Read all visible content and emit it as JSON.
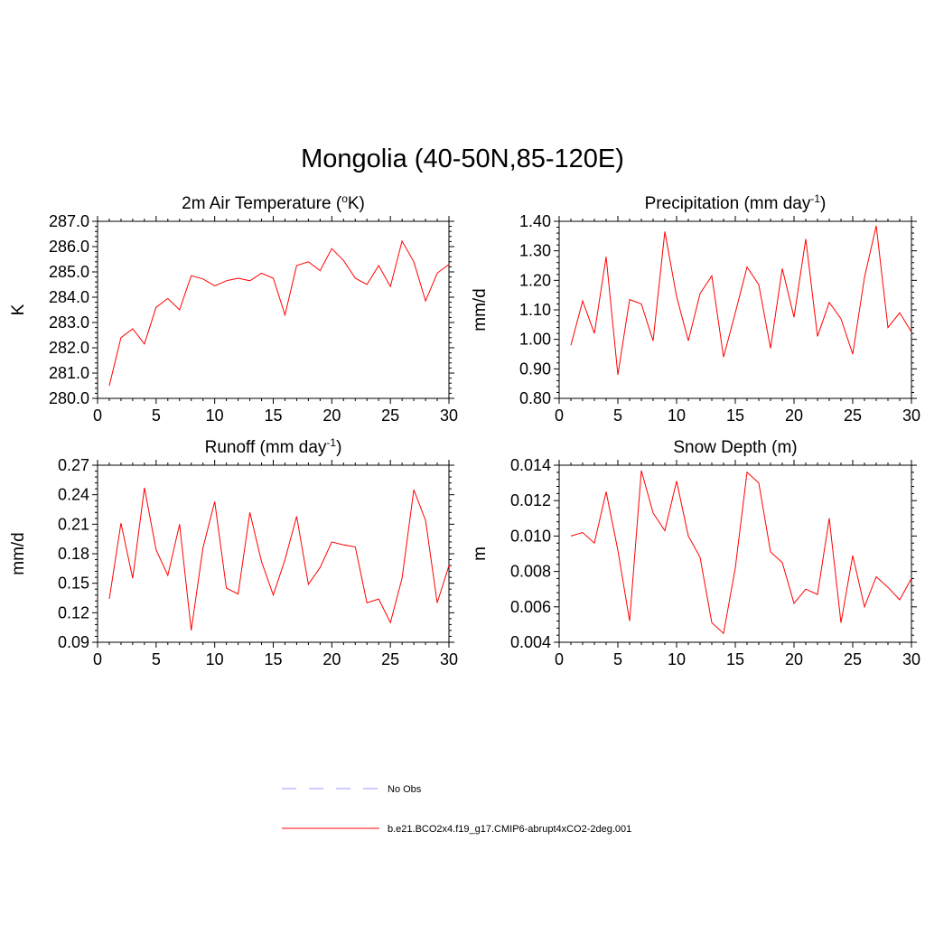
{
  "title": "Mongolia (40-50N,85-120E)",
  "legend": {
    "entries": [
      {
        "label": "No Obs",
        "color": "#9999ff",
        "style": "dashed"
      },
      {
        "label": "b.e21.BCO2x4.f19_g17.CMIP6-abrupt4xCO2-2deg.001",
        "color": "#ff0000",
        "style": "solid"
      }
    ]
  },
  "chart_data": [
    {
      "type": "line",
      "title": "2m Air Temperature (",
      "title_super": "o",
      "title_tail": "K)",
      "ylabel": "K",
      "xlim": [
        0,
        30
      ],
      "ylim": [
        280.0,
        287.0
      ],
      "xticks": [
        0,
        5,
        10,
        15,
        20,
        25,
        30
      ],
      "yticks": [
        "280.0",
        "281.0",
        "282.0",
        "283.0",
        "284.0",
        "285.0",
        "286.0",
        "287.0"
      ],
      "x": [
        1,
        2,
        3,
        4,
        5,
        6,
        7,
        8,
        9,
        10,
        11,
        12,
        13,
        14,
        15,
        16,
        17,
        18,
        19,
        20,
        21,
        22,
        23,
        24,
        25,
        26,
        27,
        28,
        29,
        30
      ],
      "values": [
        280.5,
        282.4,
        282.75,
        282.15,
        283.6,
        283.95,
        283.5,
        284.85,
        284.72,
        284.45,
        284.65,
        284.75,
        284.65,
        284.95,
        284.75,
        283.3,
        285.25,
        285.4,
        285.05,
        285.92,
        285.45,
        284.75,
        284.5,
        285.25,
        284.42,
        286.22,
        285.4,
        283.85,
        284.95,
        285.3
      ],
      "series_name": "b.e21.BCO2x4.f19_g17.CMIP6-abrupt4xCO2-2deg.001",
      "color": "#ff0000"
    },
    {
      "type": "line",
      "title": "Precipitation (mm day",
      "title_super": "-1",
      "title_tail": ")",
      "ylabel": "mm/d",
      "xlim": [
        0,
        30
      ],
      "ylim": [
        0.8,
        1.4
      ],
      "xticks": [
        0,
        5,
        10,
        15,
        20,
        25,
        30
      ],
      "yticks": [
        "0.80",
        "0.90",
        "1.00",
        "1.10",
        "1.20",
        "1.30",
        "1.40"
      ],
      "x": [
        1,
        2,
        3,
        4,
        5,
        6,
        7,
        8,
        9,
        10,
        11,
        12,
        13,
        14,
        15,
        16,
        17,
        18,
        19,
        20,
        21,
        22,
        23,
        24,
        25,
        26,
        27,
        28,
        29,
        30
      ],
      "values": [
        0.98,
        1.13,
        1.02,
        1.28,
        0.88,
        1.135,
        1.12,
        0.995,
        1.365,
        1.145,
        0.995,
        1.155,
        1.215,
        0.94,
        1.09,
        1.245,
        1.185,
        0.97,
        1.24,
        1.075,
        1.34,
        1.01,
        1.125,
        1.07,
        0.95,
        1.21,
        1.385,
        1.04,
        1.09,
        1.025
      ],
      "series_name": "b.e21.BCO2x4.f19_g17.CMIP6-abrupt4xCO2-2deg.001",
      "color": "#ff0000"
    },
    {
      "type": "line",
      "title": "Runoff (mm day",
      "title_super": "-1",
      "title_tail": ")",
      "ylabel": "mm/d",
      "xlim": [
        0,
        30
      ],
      "ylim": [
        0.09,
        0.27
      ],
      "xticks": [
        0,
        5,
        10,
        15,
        20,
        25,
        30
      ],
      "yticks": [
        "0.09",
        "0.12",
        "0.15",
        "0.18",
        "0.21",
        "0.24",
        "0.27"
      ],
      "x": [
        1,
        2,
        3,
        4,
        5,
        6,
        7,
        8,
        9,
        10,
        11,
        12,
        13,
        14,
        15,
        16,
        17,
        18,
        19,
        20,
        21,
        22,
        23,
        24,
        25,
        26,
        27,
        28,
        29,
        30
      ],
      "values": [
        0.134,
        0.211,
        0.155,
        0.247,
        0.184,
        0.158,
        0.21,
        0.102,
        0.186,
        0.233,
        0.145,
        0.139,
        0.222,
        0.172,
        0.138,
        0.174,
        0.218,
        0.149,
        0.166,
        0.192,
        0.189,
        0.187,
        0.13,
        0.134,
        0.11,
        0.155,
        0.245,
        0.214,
        0.13,
        0.168
      ],
      "series_name": "b.e21.BCO2x4.f19_g17.CMIP6-abrupt4xCO2-2deg.001",
      "color": "#ff0000"
    },
    {
      "type": "line",
      "title": "Snow Depth (m)",
      "title_super": "",
      "title_tail": "",
      "ylabel": "m",
      "xlim": [
        0,
        30
      ],
      "ylim": [
        0.004,
        0.014
      ],
      "xticks": [
        0,
        5,
        10,
        15,
        20,
        25,
        30
      ],
      "yticks": [
        "0.004",
        "0.006",
        "0.008",
        "0.010",
        "0.012",
        "0.014"
      ],
      "x": [
        1,
        2,
        3,
        4,
        5,
        6,
        7,
        8,
        9,
        10,
        11,
        12,
        13,
        14,
        15,
        16,
        17,
        18,
        19,
        20,
        21,
        22,
        23,
        24,
        25,
        26,
        27,
        28,
        29,
        30
      ],
      "values": [
        0.01,
        0.0102,
        0.0096,
        0.0125,
        0.0092,
        0.0052,
        0.0137,
        0.0113,
        0.0103,
        0.0131,
        0.01,
        0.0088,
        0.0051,
        0.0045,
        0.0082,
        0.0136,
        0.013,
        0.0091,
        0.0085,
        0.0062,
        0.007,
        0.0067,
        0.011,
        0.0051,
        0.0089,
        0.006,
        0.0077,
        0.0071,
        0.0064,
        0.0076
      ],
      "series_name": "b.e21.BCO2x4.f19_g17.CMIP6-abrupt4xCO2-2deg.001",
      "color": "#ff0000"
    }
  ]
}
